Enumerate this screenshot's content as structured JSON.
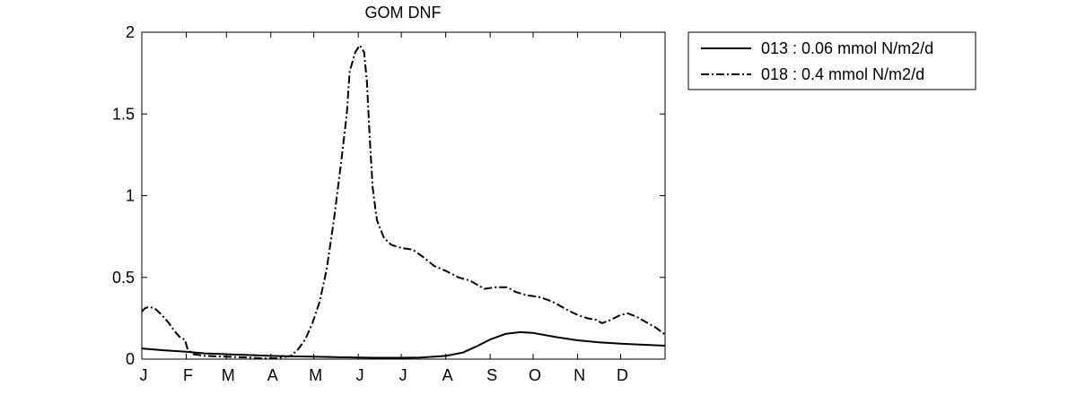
{
  "chart_data": {
    "type": "line",
    "title": "GOM DNF",
    "xlabel": "",
    "ylabel": "",
    "xlim": [
      1,
      366
    ],
    "ylim": [
      0,
      2
    ],
    "yticks": [
      0,
      0.5,
      1,
      1.5,
      2
    ],
    "ytick_labels": [
      "0",
      "0.5",
      "1",
      "1.5",
      "2"
    ],
    "xticks": [
      {
        "label": "J",
        "x": 1
      },
      {
        "label": "F",
        "x": 32
      },
      {
        "label": "M",
        "x": 60
      },
      {
        "label": "A",
        "x": 91
      },
      {
        "label": "M",
        "x": 121
      },
      {
        "label": "J",
        "x": 152
      },
      {
        "label": "J",
        "x": 182
      },
      {
        "label": "A",
        "x": 213
      },
      {
        "label": "S",
        "x": 244
      },
      {
        "label": "O",
        "x": 274
      },
      {
        "label": "N",
        "x": 305
      },
      {
        "label": "D",
        "x": 335
      }
    ],
    "grid": false,
    "legend_position": "outside-right-top",
    "series": [
      {
        "name": "013 : 0.06 mmol N/m2/d",
        "line_style": "solid",
        "color": "#000000",
        "points": [
          [
            1,
            0.065
          ],
          [
            15,
            0.055
          ],
          [
            32,
            0.045
          ],
          [
            45,
            0.035
          ],
          [
            60,
            0.03
          ],
          [
            75,
            0.025
          ],
          [
            91,
            0.02
          ],
          [
            105,
            0.017
          ],
          [
            121,
            0.015
          ],
          [
            135,
            0.012
          ],
          [
            152,
            0.01
          ],
          [
            165,
            0.008
          ],
          [
            182,
            0.008
          ],
          [
            195,
            0.01
          ],
          [
            205,
            0.015
          ],
          [
            213,
            0.02
          ],
          [
            225,
            0.04
          ],
          [
            235,
            0.08
          ],
          [
            244,
            0.12
          ],
          [
            255,
            0.155
          ],
          [
            265,
            0.165
          ],
          [
            274,
            0.16
          ],
          [
            290,
            0.135
          ],
          [
            305,
            0.115
          ],
          [
            320,
            0.103
          ],
          [
            335,
            0.095
          ],
          [
            350,
            0.088
          ],
          [
            366,
            0.082
          ]
        ]
      },
      {
        "name": "018 : 0.4 mmol N/m2/d",
        "line_style": "dashdot",
        "color": "#000000",
        "points": [
          [
            1,
            0.29
          ],
          [
            3,
            0.31
          ],
          [
            6,
            0.32
          ],
          [
            10,
            0.31
          ],
          [
            15,
            0.27
          ],
          [
            20,
            0.22
          ],
          [
            24,
            0.17
          ],
          [
            28,
            0.13
          ],
          [
            31,
            0.12
          ],
          [
            33,
            0.06
          ],
          [
            37,
            0.03
          ],
          [
            45,
            0.02
          ],
          [
            60,
            0.015
          ],
          [
            75,
            0.01
          ],
          [
            85,
            0.005
          ],
          [
            95,
            0.005
          ],
          [
            105,
            0.02
          ],
          [
            110,
            0.06
          ],
          [
            115,
            0.12
          ],
          [
            120,
            0.22
          ],
          [
            125,
            0.35
          ],
          [
            130,
            0.55
          ],
          [
            135,
            0.85
          ],
          [
            140,
            1.2
          ],
          [
            144,
            1.5
          ],
          [
            146,
            1.76
          ],
          [
            150,
            1.88
          ],
          [
            153,
            1.92
          ],
          [
            156,
            1.88
          ],
          [
            158,
            1.7
          ],
          [
            160,
            1.35
          ],
          [
            162,
            1.05
          ],
          [
            165,
            0.85
          ],
          [
            170,
            0.74
          ],
          [
            175,
            0.7
          ],
          [
            182,
            0.68
          ],
          [
            190,
            0.67
          ],
          [
            198,
            0.62
          ],
          [
            205,
            0.57
          ],
          [
            213,
            0.54
          ],
          [
            222,
            0.5
          ],
          [
            230,
            0.48
          ],
          [
            240,
            0.43
          ],
          [
            248,
            0.44
          ],
          [
            256,
            0.44
          ],
          [
            262,
            0.41
          ],
          [
            270,
            0.39
          ],
          [
            278,
            0.38
          ],
          [
            285,
            0.36
          ],
          [
            290,
            0.34
          ],
          [
            298,
            0.3
          ],
          [
            305,
            0.27
          ],
          [
            312,
            0.25
          ],
          [
            318,
            0.24
          ],
          [
            322,
            0.22
          ],
          [
            328,
            0.24
          ],
          [
            335,
            0.27
          ],
          [
            340,
            0.28
          ],
          [
            346,
            0.26
          ],
          [
            352,
            0.23
          ],
          [
            360,
            0.19
          ],
          [
            366,
            0.15
          ]
        ]
      }
    ]
  }
}
